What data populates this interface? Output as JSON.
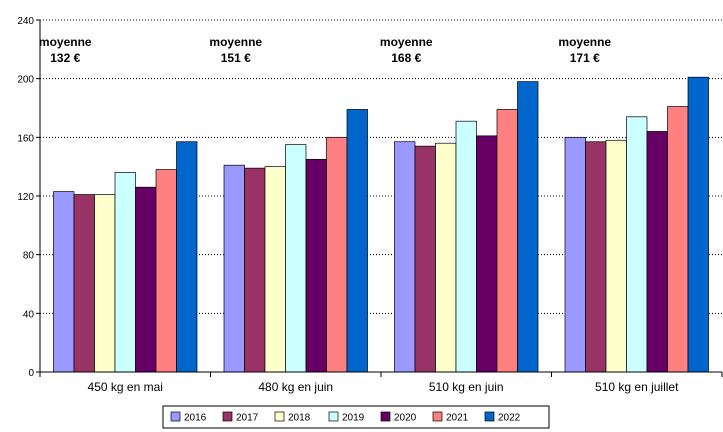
{
  "chart_data": {
    "type": "bar",
    "categories": [
      "450 kg en mai",
      "480 kg en juin",
      "510 kg en juin",
      "510 kg en juillet"
    ],
    "series": [
      {
        "name": "2016",
        "color": "#9999FF",
        "values": [
          123,
          141,
          157,
          160
        ]
      },
      {
        "name": "2017",
        "color": "#993366",
        "values": [
          121,
          139,
          154,
          157
        ]
      },
      {
        "name": "2018",
        "color": "#FFFFCC",
        "values": [
          121,
          140,
          156,
          158
        ]
      },
      {
        "name": "2019",
        "color": "#CCFFFF",
        "values": [
          136,
          155,
          171,
          174
        ]
      },
      {
        "name": "2020",
        "color": "#660066",
        "values": [
          126,
          145,
          161,
          164
        ]
      },
      {
        "name": "2021",
        "color": "#FF8080",
        "values": [
          138,
          160,
          179,
          181
        ]
      },
      {
        "name": "2022",
        "color": "#0066CC",
        "values": [
          157,
          179,
          198,
          201
        ]
      }
    ],
    "ylim": [
      0,
      240
    ],
    "yticks": [
      "0",
      "40",
      "80",
      "120",
      "160",
      "200",
      "240"
    ],
    "gridlines": true,
    "legend_position": "bottom",
    "annotations": [
      {
        "line1": "moyenne",
        "line2": "132 €"
      },
      {
        "line1": "moyenne",
        "line2": "151 €"
      },
      {
        "line1": "moyenne",
        "line2": "168 €"
      },
      {
        "line1": "moyenne",
        "line2": "171 €"
      }
    ]
  }
}
